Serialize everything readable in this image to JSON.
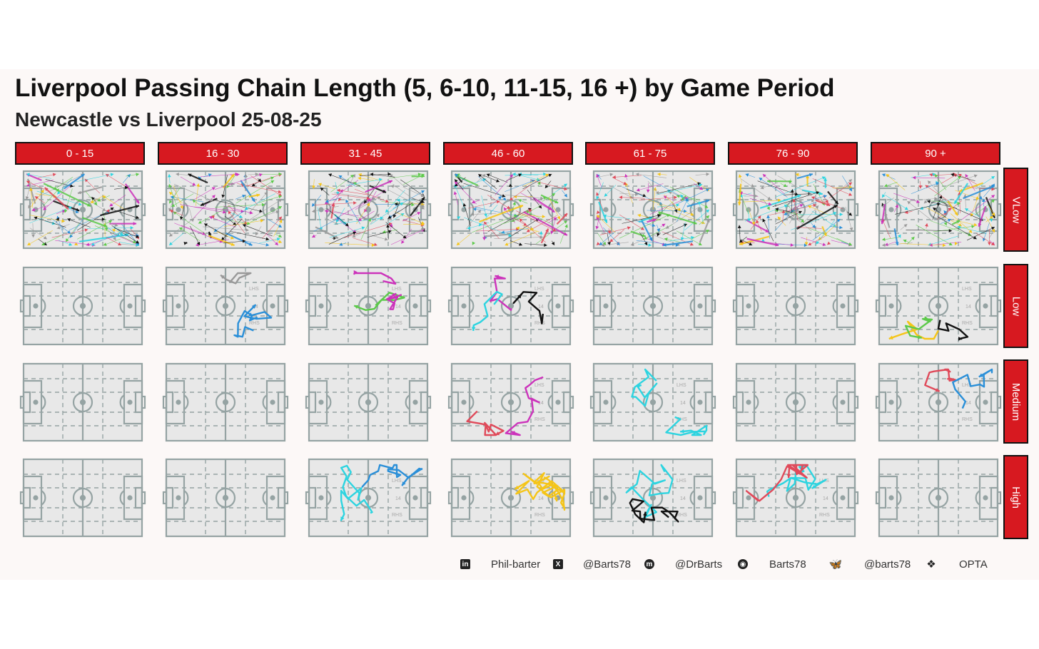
{
  "title": "Liverpool Passing Chain Length (5, 6-10, 11-15, 16 +) by Game Period",
  "subtitle": "Newcastle vs Liverpool 25-08-25",
  "chart_data": {
    "type": "small-multiple pitch pass maps",
    "columns": [
      "0 - 15",
      "16 - 30",
      "31 - 45",
      "46 - 60",
      "61 - 75",
      "76 - 90",
      "90 +"
    ],
    "rows": [
      "VLow",
      "Low",
      "Medium",
      "High"
    ],
    "pitch_zone_labels": {
      "left_half_space": "LHS",
      "zone": "14",
      "right_half_space": "RHS"
    },
    "cells": {
      "VLow": {
        "0 - 15": true,
        "16 - 30": true,
        "31 - 45": true,
        "46 - 60": true,
        "61 - 75": true,
        "76 - 90": true,
        "90 +": true
      },
      "Low": {
        "0 - 15": false,
        "16 - 30": true,
        "31 - 45": true,
        "46 - 60": true,
        "61 - 75": false,
        "76 - 90": false,
        "90 +": true
      },
      "Medium": {
        "0 - 15": false,
        "16 - 30": false,
        "31 - 45": false,
        "46 - 60": true,
        "61 - 75": true,
        "76 - 90": false,
        "90 +": true
      },
      "High": {
        "0 - 15": false,
        "16 - 30": false,
        "31 - 45": true,
        "46 - 60": true,
        "61 - 75": true,
        "76 - 90": true,
        "90 +": false
      }
    },
    "chain_colors": [
      "#cc33bb",
      "#f5c518",
      "#2a8fd8",
      "#2dd4e0",
      "#e04a5a",
      "#5cc94a",
      "#111111",
      "#999999"
    ]
  },
  "footer": {
    "linkedin": {
      "icon": "linkedin-icon",
      "handle": "Phil-barter"
    },
    "x": {
      "icon": "x-icon",
      "handle": "@Barts78"
    },
    "mastodon": {
      "icon": "mastodon-icon",
      "handle": "@DrBarts"
    },
    "github": {
      "icon": "github-icon",
      "handle": "Barts78"
    },
    "bluesky": {
      "icon": "bluesky-icon",
      "handle": "@barts78"
    },
    "dropbox": {
      "icon": "dropbox-icon",
      "source": "OPTA"
    }
  }
}
